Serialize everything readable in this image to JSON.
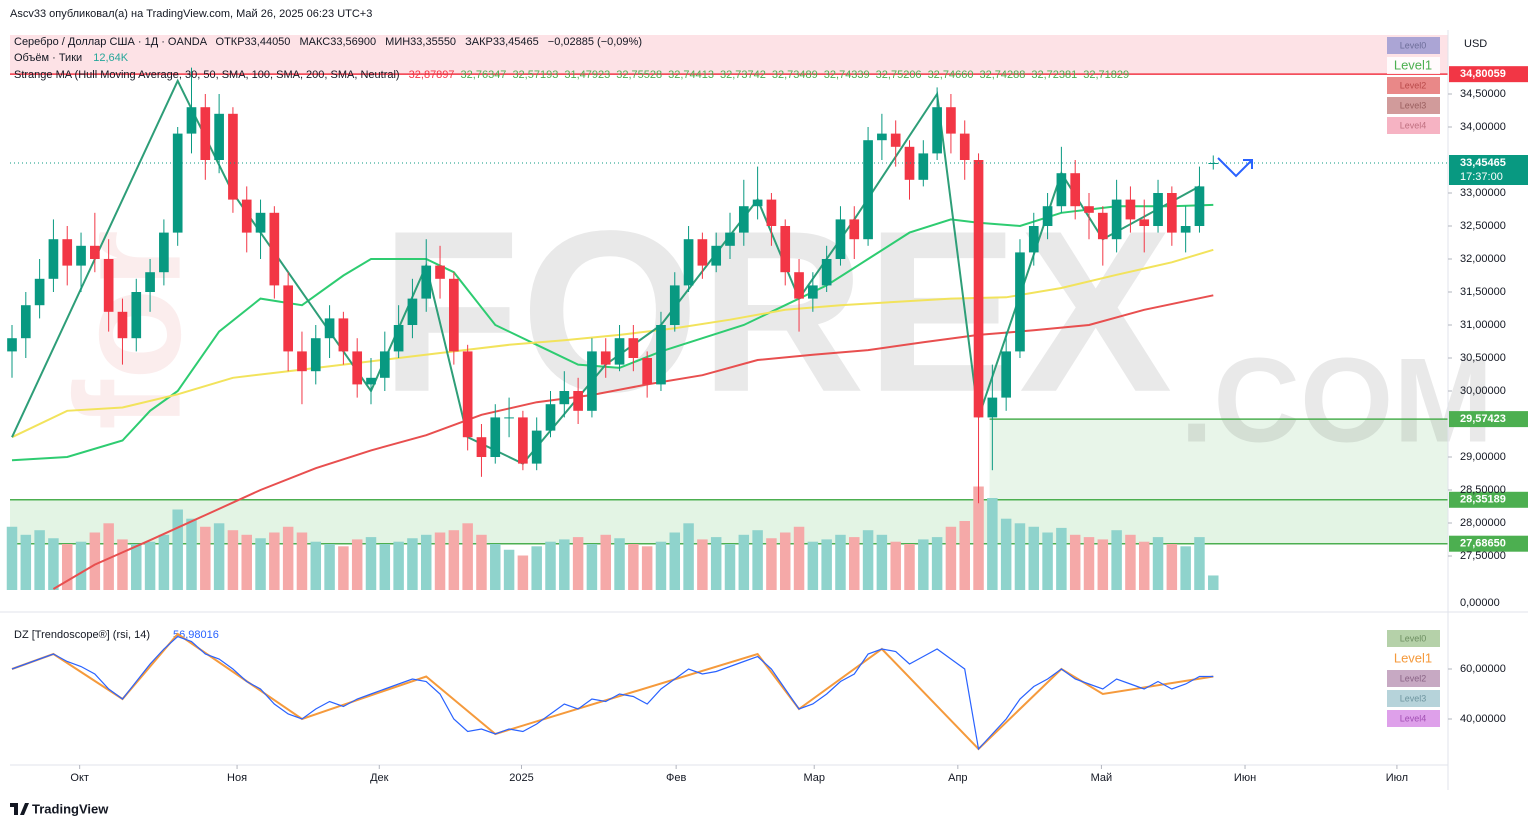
{
  "header": {
    "author_line": "Ascv33 опубликовал(а) на TradingView.com, Май 26, 2025 06:23 UTC+3"
  },
  "legend": {
    "symbol": "Серебро / Доллар США · 1Д · OANDA",
    "ohlc": [
      "ОТКР33,44050",
      "МАКС33,56900",
      "МИН33,35550",
      "ЗАКР33,45465"
    ],
    "change": "−0,02885 (−0,09%)",
    "volume": "Объём · Тики",
    "volume_value": "12,64K",
    "ma": "Strange MA (Hull Moving Average, 30, 50, SMA, 100, SMA, 200, SMA, Neutral)",
    "ma_values": [
      "32,87897",
      "32,76347",
      "32,57193",
      "31,47923",
      "32,75528",
      "32,74413",
      "32,73742",
      "32,73489",
      "32,74339",
      "32,75206",
      "32,74660",
      "32,74288",
      "32,72381",
      "32,71829"
    ]
  },
  "currency": "USD",
  "watermark": {
    "prefix": "for",
    "main": "FOREX",
    "suffix": ".COM"
  },
  "footer": "TradingView",
  "chart_data": [
    {
      "type": "candlestick",
      "up_color": "#089981",
      "down_color": "#f23645",
      "candles": [
        [
          30.6,
          31.0,
          30.2,
          30.8
        ],
        [
          30.8,
          31.5,
          30.5,
          31.3
        ],
        [
          31.3,
          32.0,
          31.1,
          31.7
        ],
        [
          31.7,
          32.6,
          31.5,
          32.3
        ],
        [
          32.3,
          32.5,
          31.6,
          31.9
        ],
        [
          31.9,
          32.4,
          31.5,
          32.2
        ],
        [
          32.2,
          32.7,
          31.8,
          32.0
        ],
        [
          32.0,
          32.3,
          30.9,
          31.2
        ],
        [
          31.2,
          31.4,
          30.4,
          30.8
        ],
        [
          30.8,
          31.7,
          30.6,
          31.5
        ],
        [
          31.5,
          32.0,
          31.2,
          31.8
        ],
        [
          31.8,
          32.6,
          31.6,
          32.4
        ],
        [
          32.4,
          34.0,
          32.2,
          33.9
        ],
        [
          33.9,
          34.9,
          33.6,
          34.3
        ],
        [
          34.3,
          34.5,
          33.2,
          33.5
        ],
        [
          33.5,
          34.5,
          33.3,
          34.2
        ],
        [
          34.2,
          34.3,
          32.7,
          32.9
        ],
        [
          32.9,
          33.1,
          32.1,
          32.4
        ],
        [
          32.4,
          32.9,
          32.0,
          32.7
        ],
        [
          32.7,
          32.8,
          31.4,
          31.6
        ],
        [
          31.6,
          31.8,
          30.3,
          30.6
        ],
        [
          30.6,
          30.9,
          29.8,
          30.3
        ],
        [
          30.3,
          31.0,
          30.1,
          30.8
        ],
        [
          30.8,
          31.3,
          30.5,
          31.1
        ],
        [
          31.1,
          31.2,
          30.4,
          30.6
        ],
        [
          30.6,
          30.8,
          29.9,
          30.1
        ],
        [
          30.1,
          30.5,
          29.8,
          30.2
        ],
        [
          30.2,
          30.9,
          30.0,
          30.6
        ],
        [
          30.6,
          31.3,
          30.5,
          31.0
        ],
        [
          31.0,
          31.7,
          30.8,
          31.4
        ],
        [
          31.4,
          32.3,
          31.2,
          31.9
        ],
        [
          31.9,
          32.2,
          31.4,
          31.7
        ],
        [
          31.7,
          31.8,
          30.4,
          30.6
        ],
        [
          30.6,
          30.7,
          29.1,
          29.3
        ],
        [
          29.3,
          29.5,
          28.7,
          29.0
        ],
        [
          29.0,
          29.8,
          28.9,
          29.6
        ],
        [
          29.6,
          29.9,
          29.3,
          29.6
        ],
        [
          29.6,
          29.7,
          28.8,
          28.9
        ],
        [
          28.9,
          29.6,
          28.8,
          29.4
        ],
        [
          29.4,
          30.0,
          29.3,
          29.8
        ],
        [
          29.8,
          30.3,
          29.6,
          30.0
        ],
        [
          30.0,
          30.2,
          29.5,
          29.7
        ],
        [
          29.7,
          30.8,
          29.6,
          30.6
        ],
        [
          30.6,
          30.8,
          30.2,
          30.4
        ],
        [
          30.4,
          31.0,
          30.3,
          30.8
        ],
        [
          30.8,
          31.0,
          30.3,
          30.5
        ],
        [
          30.5,
          30.6,
          29.9,
          30.1
        ],
        [
          30.1,
          31.2,
          30.0,
          31.0
        ],
        [
          31.0,
          31.8,
          30.9,
          31.6
        ],
        [
          31.6,
          32.5,
          31.5,
          32.3
        ],
        [
          32.3,
          32.4,
          31.7,
          31.9
        ],
        [
          31.9,
          32.4,
          31.8,
          32.2
        ],
        [
          32.2,
          32.7,
          32.0,
          32.4
        ],
        [
          32.4,
          33.2,
          32.2,
          32.8
        ],
        [
          32.8,
          33.4,
          32.6,
          32.9
        ],
        [
          32.9,
          33.0,
          32.2,
          32.5
        ],
        [
          32.5,
          32.6,
          31.6,
          31.8
        ],
        [
          31.8,
          32.0,
          30.9,
          31.4
        ],
        [
          31.4,
          31.8,
          31.2,
          31.6
        ],
        [
          31.6,
          32.2,
          31.5,
          32.0
        ],
        [
          32.0,
          32.8,
          31.9,
          32.6
        ],
        [
          32.6,
          32.8,
          32.0,
          32.3
        ],
        [
          32.3,
          34.0,
          32.2,
          33.8
        ],
        [
          33.8,
          34.2,
          33.5,
          33.9
        ],
        [
          33.9,
          34.1,
          33.4,
          33.7
        ],
        [
          33.7,
          33.8,
          32.9,
          33.2
        ],
        [
          33.2,
          33.8,
          33.1,
          33.6
        ],
        [
          33.6,
          34.6,
          33.5,
          34.3
        ],
        [
          34.3,
          34.5,
          33.6,
          33.9
        ],
        [
          33.9,
          34.1,
          33.2,
          33.5
        ],
        [
          33.5,
          33.6,
          28.3,
          29.6
        ],
        [
          29.6,
          30.4,
          28.8,
          29.9
        ],
        [
          29.9,
          30.9,
          29.7,
          30.6
        ],
        [
          30.6,
          32.3,
          30.5,
          32.1
        ],
        [
          32.1,
          32.7,
          31.9,
          32.5
        ],
        [
          32.5,
          33.0,
          32.3,
          32.8
        ],
        [
          32.8,
          33.7,
          32.7,
          33.3
        ],
        [
          33.3,
          33.5,
          32.6,
          32.8
        ],
        [
          32.8,
          33.0,
          32.3,
          32.7
        ],
        [
          32.7,
          32.8,
          31.9,
          32.3
        ],
        [
          32.3,
          33.2,
          32.1,
          32.9
        ],
        [
          32.9,
          33.1,
          32.4,
          32.6
        ],
        [
          32.6,
          32.9,
          32.1,
          32.5
        ],
        [
          32.5,
          33.2,
          32.4,
          33.0
        ],
        [
          33.0,
          33.1,
          32.2,
          32.4
        ],
        [
          32.4,
          32.8,
          32.1,
          32.5
        ],
        [
          32.5,
          33.4,
          32.4,
          33.1
        ],
        [
          33.4405,
          33.569,
          33.3555,
          33.45465
        ]
      ],
      "xlim": [
        0,
        104
      ],
      "xticks": [
        {
          "value": 4.9,
          "label": "Окт"
        },
        {
          "value": 16.3,
          "label": "Ноя"
        },
        {
          "value": 26.6,
          "label": "Дек"
        },
        {
          "value": 36.9,
          "label": "2025"
        },
        {
          "value": 48.1,
          "label": "Фев"
        },
        {
          "value": 58.1,
          "label": "Мар"
        },
        {
          "value": 68.5,
          "label": "Апр"
        },
        {
          "value": 78.9,
          "label": "Май"
        },
        {
          "value": 89.3,
          "label": "Июн"
        },
        {
          "value": 100.3,
          "label": "Июл"
        }
      ],
      "ylim": [
        26.985,
        35.394
      ],
      "yticks": [
        {
          "value": 34.5,
          "label": "34,50000"
        },
        {
          "value": 34,
          "label": "34,00000"
        },
        {
          "value": 33,
          "label": "33,00000"
        },
        {
          "value": 32.5,
          "label": "32,50000"
        },
        {
          "value": 32,
          "label": "32,00000"
        },
        {
          "value": 31.5,
          "label": "31,50000"
        },
        {
          "value": 31,
          "label": "31,00000"
        },
        {
          "value": 30.5,
          "label": "30,50000"
        },
        {
          "value": 30,
          "label": "30,00000"
        },
        {
          "value": 29,
          "label": "29,00000"
        },
        {
          "value": 28.5,
          "label": "28,50000"
        },
        {
          "value": 28,
          "label": "28,00000"
        },
        {
          "value": 27.5,
          "label": "27,50000"
        }
      ],
      "grid": false,
      "volume": {
        "up_color": "#8fd3cc",
        "down_color": "#f5a9a8",
        "ylim": [
          0,
          100
        ],
        "yticks": [
          {
            "value": 0,
            "label": "0,00000"
          }
        ],
        "values": [
          55,
          48,
          52,
          45,
          40,
          42,
          50,
          58,
          44,
          40,
          42,
          48,
          70,
          62,
          55,
          58,
          52,
          48,
          45,
          50,
          55,
          50,
          42,
          40,
          38,
          44,
          46,
          40,
          42,
          45,
          48,
          50,
          52,
          58,
          48,
          40,
          35,
          30,
          38,
          42,
          44,
          46,
          40,
          48,
          45,
          40,
          38,
          42,
          50,
          58,
          44,
          46,
          40,
          48,
          52,
          45,
          50,
          55,
          42,
          44,
          48,
          46,
          52,
          48,
          42,
          40,
          44,
          46,
          55,
          60,
          90,
          80,
          62,
          58,
          55,
          50,
          54,
          48,
          46,
          44,
          52,
          48,
          42,
          46,
          40,
          38,
          46,
          12.64
        ]
      },
      "lines": [
        {
          "color": "#2ecc71",
          "x": [
            0,
            4,
            8,
            10,
            12,
            15,
            18,
            21,
            24,
            26,
            30,
            32,
            35,
            38,
            41,
            44,
            47,
            50,
            53,
            56,
            59,
            62,
            65,
            68,
            70,
            73,
            76,
            80,
            84,
            87
          ],
          "values": [
            28.95,
            29.0,
            29.25,
            29.7,
            30.0,
            30.9,
            31.4,
            31.3,
            31.75,
            32.0,
            32.0,
            31.8,
            31.0,
            30.7,
            30.4,
            30.35,
            30.6,
            30.8,
            31.0,
            31.3,
            31.6,
            32.0,
            32.4,
            32.6,
            32.55,
            32.5,
            32.7,
            32.8,
            32.8,
            32.82
          ]
        },
        {
          "color": "#f2e35c",
          "x": [
            0,
            4,
            8,
            12,
            16,
            20,
            24,
            28,
            32,
            36,
            40,
            44,
            48,
            52,
            56,
            60,
            64,
            68,
            72,
            76,
            80,
            84,
            87
          ],
          "values": [
            29.3,
            29.7,
            29.75,
            29.95,
            30.2,
            30.3,
            30.4,
            30.5,
            30.6,
            30.7,
            30.77,
            30.85,
            30.95,
            31.08,
            31.23,
            31.3,
            31.35,
            31.4,
            31.42,
            31.56,
            31.76,
            31.95,
            32.14
          ]
        },
        {
          "color": "#e84f4f",
          "x": [
            3,
            6,
            10,
            14,
            18,
            22,
            26,
            30,
            34,
            38,
            42,
            46,
            50,
            54,
            58,
            62,
            66,
            70,
            74,
            78,
            82,
            87
          ],
          "values": [
            27.0,
            27.37,
            27.74,
            28.12,
            28.5,
            28.83,
            29.1,
            29.33,
            29.64,
            29.83,
            29.94,
            30.1,
            30.24,
            30.47,
            30.55,
            30.62,
            30.74,
            30.85,
            30.92,
            31.0,
            31.23,
            31.45
          ]
        }
      ],
      "zigzag": {
        "color": "#2e9e78",
        "x": [
          0,
          12,
          16,
          24,
          26,
          30,
          33,
          37,
          43,
          47,
          54,
          57,
          61,
          67,
          70,
          76,
          79,
          86
        ],
        "values": [
          29.3,
          34.7,
          33.0,
          30.6,
          30.0,
          31.9,
          29.3,
          28.9,
          30.4,
          31.0,
          32.9,
          31.4,
          32.6,
          34.5,
          29.6,
          33.3,
          32.3,
          33.1
        ]
      },
      "levels": [
        {
          "value": 34.80059,
          "label": "34,80059",
          "color": "#f23645",
          "fill": "above",
          "fill_color": "#fde2e6"
        },
        {
          "value": 29.57423,
          "label": "29,57423",
          "color": "#4caf50",
          "start": 70.8,
          "fill": "below",
          "fill_color": "#e8f5e9"
        },
        {
          "value": 28.35189,
          "label": "28,35189",
          "color": "#4caf50",
          "fill": "below",
          "fill_color": "#e3f4e4"
        },
        {
          "value": 27.6865,
          "label": "27,68650",
          "color": "#4caf50"
        }
      ],
      "last_price": {
        "value": 33.45465,
        "label": "33,45465",
        "countdown": "17:37:00",
        "color": "#089981"
      },
      "level_labels": [
        "Level0",
        "Level1",
        "Level2",
        "Level3",
        "Level4"
      ]
    },
    {
      "type": "line",
      "title": "DZ [Trendoscope®] (rsi, 14)",
      "last_value_label": "56,98016",
      "color": "#2962ff",
      "values": [
        60,
        62,
        64,
        66,
        63,
        61,
        58,
        52,
        48,
        55,
        62,
        68,
        73,
        71,
        66,
        64,
        60,
        55,
        52,
        46,
        42,
        40,
        44,
        47,
        45,
        48,
        50,
        52,
        54,
        56,
        55,
        50,
        40,
        35,
        36,
        34,
        36,
        35,
        38,
        42,
        46,
        44,
        48,
        47,
        50,
        49,
        46,
        52,
        56,
        60,
        58,
        59,
        61,
        63,
        65,
        60,
        52,
        44,
        46,
        50,
        55,
        58,
        66,
        68,
        67,
        62,
        65,
        68,
        64,
        60,
        28,
        34,
        40,
        48,
        53,
        56,
        60,
        56,
        54,
        52,
        56,
        54,
        52,
        55,
        52,
        54,
        57,
        56.98016
      ],
      "xlim": [
        0,
        104
      ],
      "ylim": [
        21.6,
        76.4
      ],
      "yticks": [
        {
          "value": 60,
          "label": "60,00000"
        },
        {
          "value": 40,
          "label": "40,00000"
        }
      ],
      "zigzag": {
        "color": "#f59a3c",
        "x": [
          0,
          3,
          8,
          12,
          21,
          30,
          35,
          54,
          57,
          63,
          70,
          76,
          79,
          87
        ],
        "values": [
          60,
          66,
          48,
          74,
          40,
          57,
          34,
          66,
          44,
          68,
          28,
          60,
          50,
          57
        ]
      },
      "level_labels": [
        "Level0",
        "Level1",
        "Level2",
        "Level3",
        "Level4"
      ]
    }
  ]
}
